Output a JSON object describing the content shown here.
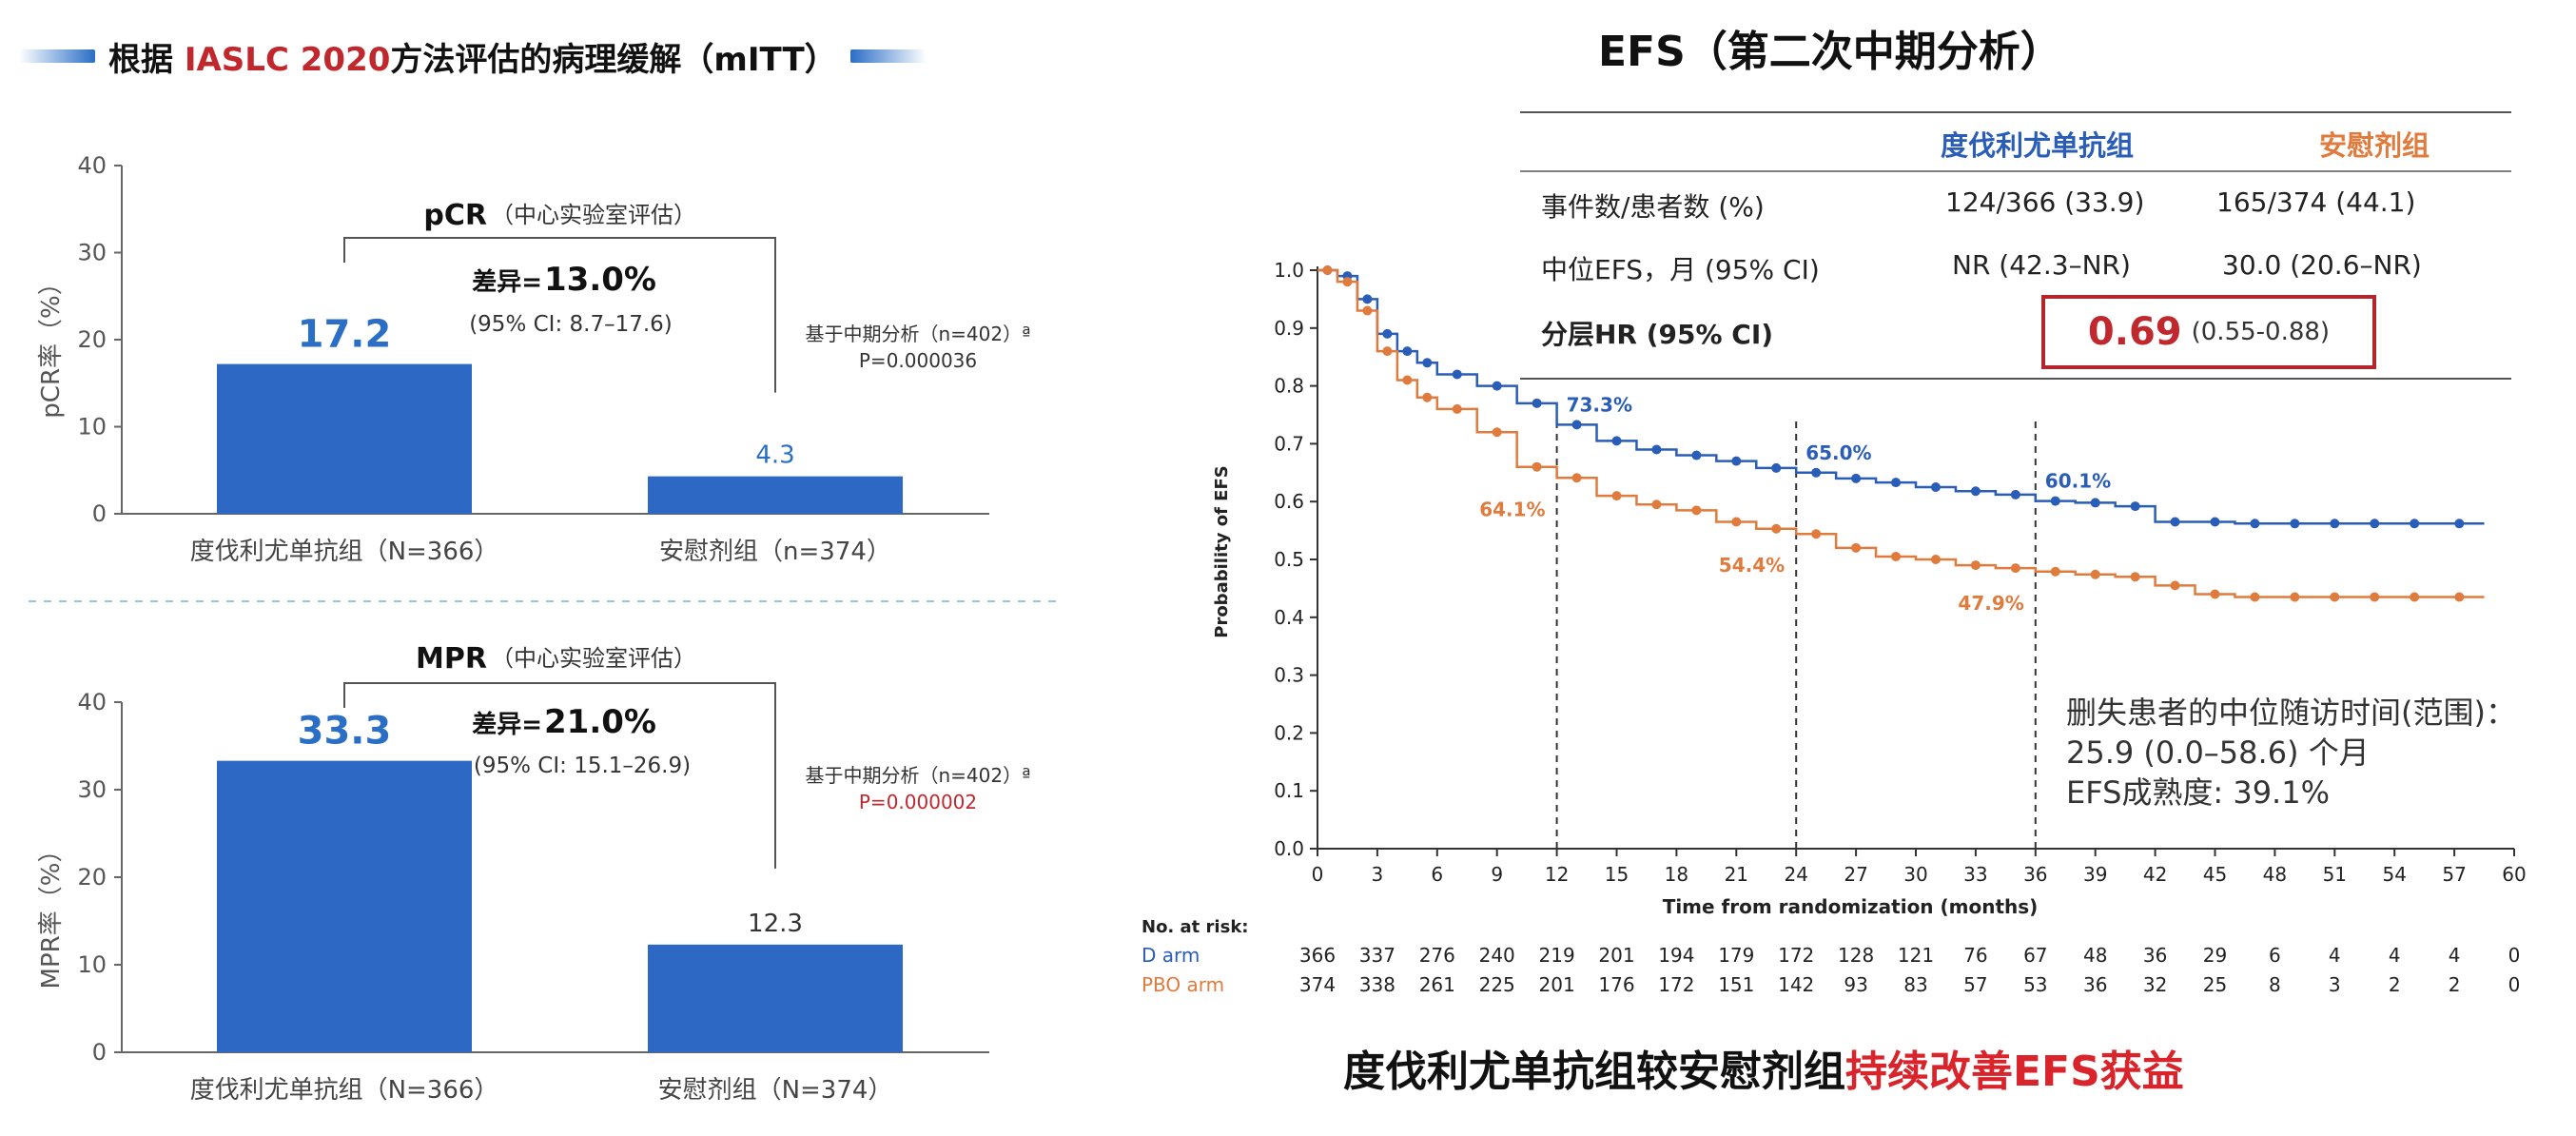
{
  "left_title": {
    "prefix": "根据 ",
    "highlight": "IASLC 2020",
    "suffix": "方法评估的病理缓解（mITT）"
  },
  "right_title": "EFS（第二次中期分析）",
  "bottom_caption": {
    "prefix": "度伐利尤单抗组较安慰剂组",
    "highlight": "持续改善EFS获益"
  },
  "colors": {
    "durvalumab": "#2a5db8",
    "placebo": "#e07b3e",
    "bar": "#2d68c4",
    "highlight_red": "#c0282d"
  },
  "chart_data": [
    {
      "type": "bar",
      "title": "pCR",
      "title_note": "（中心实验室评估）",
      "ylabel": "pCR率（%）",
      "ylim": [
        0,
        40
      ],
      "yticks": [
        "0",
        "10",
        "20",
        "30",
        "40"
      ],
      "categories": [
        "度伐利尤单抗组（N=366）",
        "安慰剂组（n=374）"
      ],
      "values": [
        17.2,
        4.3
      ],
      "value_labels": [
        "17.2",
        "4.3"
      ],
      "difference_label": "差异=",
      "difference_value": "13.0%",
      "difference_ci": "(95% CI: 8.7–17.6)",
      "analysis_note": "基于中期分析（n=402）ª",
      "p_value": "P=0.000036"
    },
    {
      "type": "bar",
      "title": "MPR",
      "title_note": "（中心实验室评估）",
      "ylabel": "MPR率（%）",
      "ylim": [
        0,
        40
      ],
      "yticks": [
        "0",
        "10",
        "20",
        "30",
        "40"
      ],
      "categories": [
        "度伐利尤单抗组（N=366）",
        "安慰剂组（N=374）"
      ],
      "values": [
        33.3,
        12.3
      ],
      "value_labels": [
        "33.3",
        "12.3"
      ],
      "difference_label": "差异=",
      "difference_value": "21.0%",
      "difference_ci": "(95% CI: 15.1–26.9)",
      "analysis_note": "基于中期分析（n=402）ª",
      "p_value": "P=0.000002"
    },
    {
      "type": "line",
      "ylabel": "Probability of EFS",
      "xlabel": "Time from randomization (months)",
      "xlim": [
        0,
        60
      ],
      "ylim": [
        0,
        1
      ],
      "xticks": [
        "0",
        "3",
        "6",
        "9",
        "12",
        "15",
        "18",
        "21",
        "24",
        "27",
        "30",
        "33",
        "36",
        "39",
        "42",
        "45",
        "48",
        "51",
        "54",
        "57",
        "60"
      ],
      "yticks": [
        "0.0",
        "0.1",
        "0.2",
        "0.3",
        "0.4",
        "0.5",
        "0.6",
        "0.7",
        "0.8",
        "0.9",
        "1.0"
      ],
      "reference_times": [
        12,
        24,
        36
      ],
      "series": [
        {
          "name": "D arm",
          "x": [
            0,
            1,
            2,
            3,
            4,
            5,
            6,
            8,
            10,
            12,
            14,
            16,
            18,
            20,
            22,
            24,
            26,
            28,
            30,
            32,
            34,
            36,
            38,
            40,
            42,
            44,
            46,
            48,
            50,
            52,
            54,
            56,
            58.5
          ],
          "y": [
            1.0,
            0.99,
            0.95,
            0.89,
            0.86,
            0.84,
            0.82,
            0.8,
            0.77,
            0.733,
            0.705,
            0.69,
            0.68,
            0.67,
            0.658,
            0.65,
            0.64,
            0.633,
            0.625,
            0.618,
            0.612,
            0.601,
            0.598,
            0.592,
            0.565,
            0.565,
            0.562,
            0.562,
            0.562,
            0.562,
            0.562,
            0.562,
            0.562
          ],
          "milestones": [
            {
              "x": 12,
              "label": "73.3%"
            },
            {
              "x": 24,
              "label": "65.0%"
            },
            {
              "x": 36,
              "label": "60.1%"
            }
          ]
        },
        {
          "name": "PBO arm",
          "x": [
            0,
            1,
            2,
            3,
            4,
            5,
            6,
            8,
            10,
            12,
            14,
            16,
            18,
            20,
            22,
            24,
            26,
            28,
            30,
            32,
            34,
            36,
            38,
            40,
            42,
            44,
            46,
            48,
            50,
            52,
            54,
            56,
            58.5
          ],
          "y": [
            1.0,
            0.98,
            0.93,
            0.86,
            0.81,
            0.78,
            0.76,
            0.72,
            0.66,
            0.641,
            0.61,
            0.595,
            0.585,
            0.565,
            0.553,
            0.544,
            0.52,
            0.505,
            0.5,
            0.49,
            0.485,
            0.479,
            0.474,
            0.47,
            0.455,
            0.44,
            0.435,
            0.435,
            0.435,
            0.435,
            0.435,
            0.435,
            0.435
          ],
          "milestones": [
            {
              "x": 12,
              "label": "64.1%"
            },
            {
              "x": 24,
              "label": "54.4%"
            },
            {
              "x": 36,
              "label": "47.9%"
            }
          ]
        }
      ],
      "at_risk": {
        "title": "No. at risk:",
        "rows": [
          {
            "name": "D arm",
            "values": [
              "366",
              "337",
              "276",
              "240",
              "219",
              "201",
              "194",
              "179",
              "172",
              "128",
              "121",
              "76",
              "67",
              "48",
              "36",
              "29",
              "6",
              "4",
              "4",
              "4",
              "0"
            ]
          },
          {
            "name": "PBO arm",
            "values": [
              "374",
              "338",
              "261",
              "225",
              "201",
              "176",
              "172",
              "151",
              "142",
              "93",
              "83",
              "57",
              "53",
              "36",
              "32",
              "25",
              "8",
              "3",
              "2",
              "2",
              "0"
            ]
          }
        ]
      }
    }
  ],
  "efs_table": {
    "headers": [
      "",
      "度伐利尤单抗组",
      "安慰剂组"
    ],
    "rows": [
      {
        "label": "事件数/患者数 (%)",
        "d": "124/366 (33.9)",
        "p": "165/374 (44.1)"
      },
      {
        "label": "中位EFS，月 (95% CI)",
        "d": "NR (42.3–NR)",
        "p": "30.0 (20.6–NR)"
      }
    ],
    "hr_label": "分层HR (95% CI)",
    "hr_value": "0.69",
    "hr_ci": "(0.55-0.88)"
  },
  "followup": {
    "line1": "删失患者的中位随访时间(范围)：",
    "line2": "25.9 (0.0–58.6) 个月",
    "line3": "EFS成熟度: 39.1%"
  }
}
